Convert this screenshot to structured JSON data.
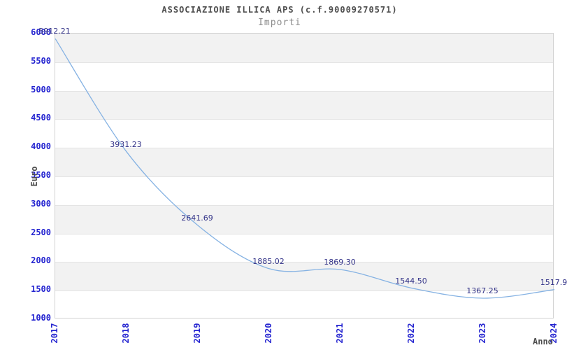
{
  "header": {
    "title": "ASSOCIAZIONE ILLICA APS (c.f.90009270571)",
    "subtitle": "Importi"
  },
  "chart_data": {
    "type": "line",
    "x": [
      "2017",
      "2018",
      "2019",
      "2020",
      "2021",
      "2022",
      "2023",
      "2024"
    ],
    "values": [
      5912.21,
      3931.23,
      2641.69,
      1885.02,
      1869.3,
      1544.5,
      1367.25,
      1517.9
    ],
    "point_labels": [
      "5912.21",
      "3931.23",
      "2641.69",
      "1885.02",
      "1869.30",
      "1544.50",
      "1367.25",
      "1517.9"
    ],
    "title": "ASSOCIAZIONE ILLICA APS (c.f.90009270571)",
    "subtitle": "Importi",
    "xlabel": "Anno",
    "ylabel": "Euro",
    "ylim": [
      1000,
      6000
    ],
    "ytick_step": 500,
    "ytick_labels": [
      "6000",
      "5500",
      "5000",
      "4500",
      "4000",
      "3500",
      "3000",
      "2500",
      "2000",
      "1500",
      "1000"
    ],
    "grid": "horizontal alternating bands, gridline at every 500",
    "legend_position": "none",
    "colors": {
      "line": "#85b2e3",
      "tick_label": "#2424d0",
      "point_label": "#333388",
      "band_fill": "#f2f2f2",
      "grid_line": "#e4e4e4",
      "axis_name_text": "#4d4d4d",
      "title_text": "#4d4d4d",
      "subtitle_text": "#8c8c8c"
    }
  }
}
